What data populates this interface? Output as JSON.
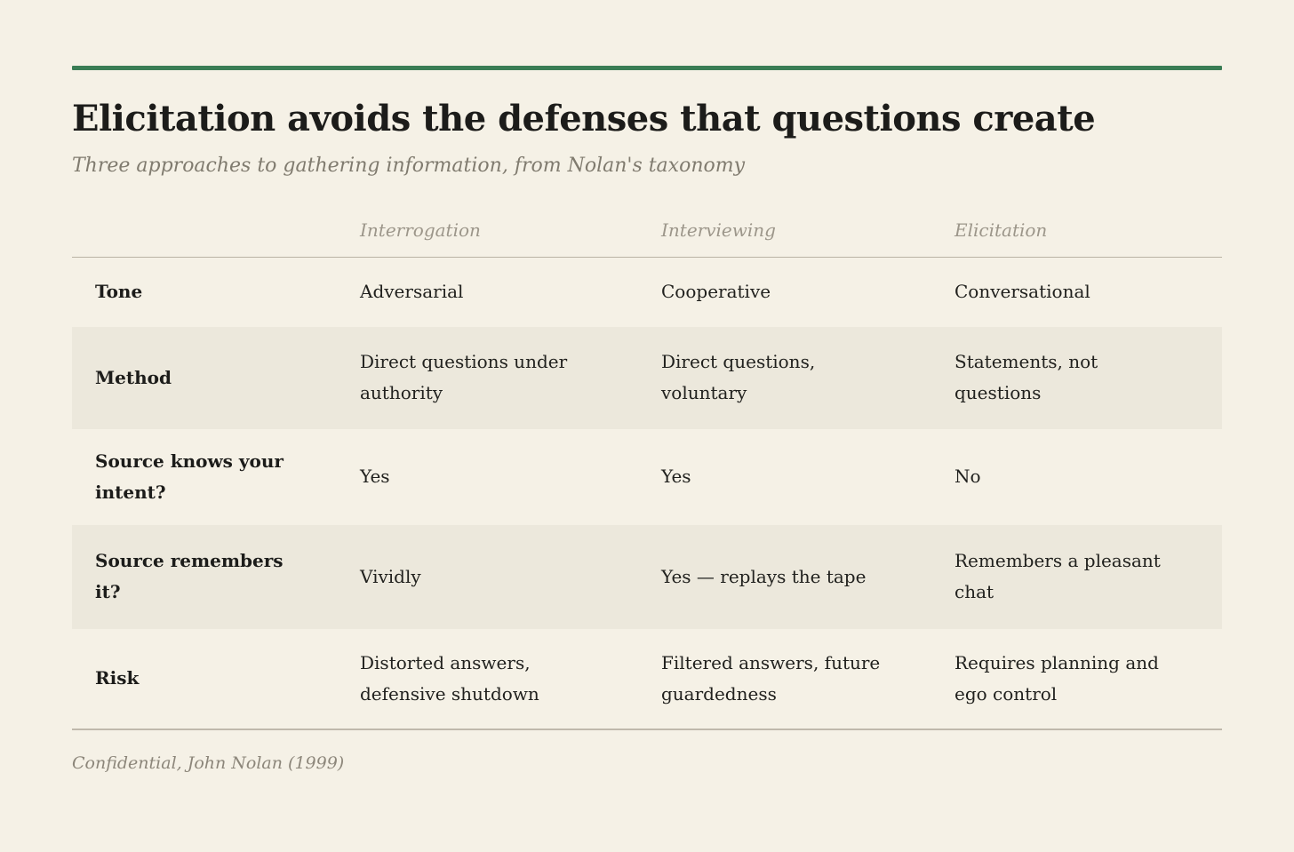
{
  "chart_data": {
    "type": "table",
    "title": "Elicitation avoids the defenses that questions create",
    "subtitle": "Three approaches to gathering information, from Nolan's taxonomy",
    "column_headers": [
      "Interrogation",
      "Interviewing",
      "Elicitation"
    ],
    "rows": [
      {
        "label": "Tone",
        "values": [
          "Adversarial",
          "Cooperative",
          "Conversational"
        ],
        "shaded": false
      },
      {
        "label": "Method",
        "values": [
          "Direct questions under authority",
          "Direct questions, voluntary",
          "Statements, not questions"
        ],
        "shaded": true
      },
      {
        "label": "Source knows your intent?",
        "values": [
          "Yes",
          "Yes",
          "No"
        ],
        "shaded": false
      },
      {
        "label": "Source remembers it?",
        "values": [
          "Vividly",
          "Yes — replays the tape",
          "Remembers a pleasant chat"
        ],
        "shaded": true
      },
      {
        "label": "Risk",
        "values": [
          "Distorted answers, defensive shutdown",
          "Filtered answers, future guardedness",
          "Requires planning and ego control"
        ],
        "shaded": false
      }
    ],
    "source_note": "Confidential, John Nolan (1999)",
    "layout_hints": {
      "legend": "none",
      "grid": "horizontal rules above header row and below last row; alternate row shading"
    },
    "colors": {
      "background": "#F5F1E6",
      "row_shade": "#ECE8DC",
      "accent_green_rule": "#3A7D55",
      "title_text": "#1C1C1A",
      "body_text": "#21211E",
      "muted_italic_text": "#9C968A",
      "subtitle_text": "#807B6F",
      "source_text": "#8C867A",
      "divider": "#B9B3A4"
    }
  }
}
